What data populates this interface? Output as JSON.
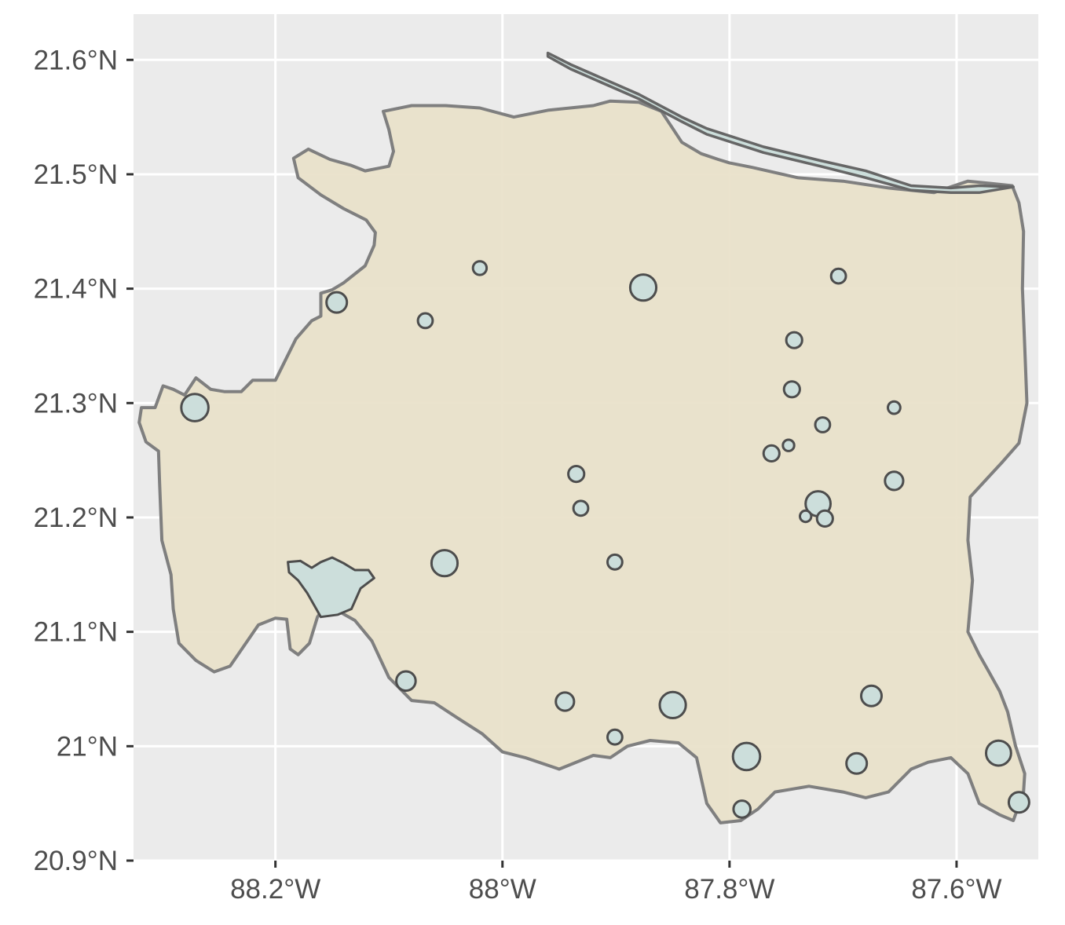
{
  "colors": {
    "panel_background": "#EBEBEB",
    "grid_line": "#FFFFFF",
    "land_fill": "#E8E1C9",
    "land_border": "#7F7F7F",
    "water_fill": "#CCDEDB",
    "water_border": "#4D4D4D",
    "axis_text": "#4D4D4D"
  },
  "map": {
    "x_axis": {
      "range": [
        -88.325,
        -87.528
      ],
      "ticks": [
        {
          "value": -88.2,
          "label": "88.2°W"
        },
        {
          "value": -88.0,
          "label": "88°W"
        },
        {
          "value": -87.8,
          "label": "87.8°W"
        },
        {
          "value": -87.6,
          "label": "87.6°W"
        }
      ]
    },
    "y_axis": {
      "range": [
        20.9,
        21.64
      ],
      "ticks": [
        {
          "value": 20.9,
          "label": "20.9°N"
        },
        {
          "value": 21.0,
          "label": "21°N"
        },
        {
          "value": 21.1,
          "label": "21.1°N"
        },
        {
          "value": 21.2,
          "label": "21.2°N"
        },
        {
          "value": 21.3,
          "label": "21.3°N"
        },
        {
          "value": 21.4,
          "label": "21.4°N"
        },
        {
          "value": 21.5,
          "label": "21.5°N"
        },
        {
          "value": 21.6,
          "label": "21.6°N"
        }
      ]
    },
    "grid": true,
    "land_outline_lonlat": [
      [
        -88.306,
        21.296
      ],
      [
        -88.299,
        21.315
      ],
      [
        -88.29,
        21.312
      ],
      [
        -88.28,
        21.307
      ],
      [
        -88.27,
        21.322
      ],
      [
        -88.257,
        21.312
      ],
      [
        -88.245,
        21.31
      ],
      [
        -88.23,
        21.31
      ],
      [
        -88.22,
        21.32
      ],
      [
        -88.2,
        21.32
      ],
      [
        -88.194,
        21.332
      ],
      [
        -88.182,
        21.356
      ],
      [
        -88.168,
        21.372
      ],
      [
        -88.16,
        21.376
      ],
      [
        -88.16,
        21.396
      ],
      [
        -88.15,
        21.399
      ],
      [
        -88.14,
        21.405
      ],
      [
        -88.121,
        21.42
      ],
      [
        -88.113,
        21.438
      ],
      [
        -88.112,
        21.449
      ],
      [
        -88.12,
        21.46
      ],
      [
        -88.14,
        21.47
      ],
      [
        -88.16,
        21.482
      ],
      [
        -88.18,
        21.497
      ],
      [
        -88.184,
        21.514
      ],
      [
        -88.171,
        21.522
      ],
      [
        -88.152,
        21.513
      ],
      [
        -88.134,
        21.508
      ],
      [
        -88.121,
        21.503
      ],
      [
        -88.1,
        21.507
      ],
      [
        -88.096,
        21.52
      ],
      [
        -88.1,
        21.539
      ],
      [
        -88.105,
        21.555
      ],
      [
        -88.08,
        21.56
      ],
      [
        -88.05,
        21.56
      ],
      [
        -88.02,
        21.558
      ],
      [
        -87.99,
        21.55
      ],
      [
        -87.96,
        21.556
      ],
      [
        -87.92,
        21.56
      ],
      [
        -87.905,
        21.564
      ],
      [
        -87.88,
        21.563
      ],
      [
        -87.86,
        21.555
      ],
      [
        -87.85,
        21.54
      ],
      [
        -87.842,
        21.528
      ],
      [
        -87.825,
        21.518
      ],
      [
        -87.81,
        21.513
      ],
      [
        -87.8,
        21.51
      ],
      [
        -87.78,
        21.506
      ],
      [
        -87.74,
        21.497
      ],
      [
        -87.7,
        21.494
      ],
      [
        -87.66,
        21.488
      ],
      [
        -87.62,
        21.484
      ],
      [
        -87.59,
        21.494
      ],
      [
        -87.57,
        21.492
      ],
      [
        -87.551,
        21.49
      ],
      [
        -87.545,
        21.475
      ],
      [
        -87.541,
        21.45
      ],
      [
        -87.542,
        21.4
      ],
      [
        -87.54,
        21.35
      ],
      [
        -87.538,
        21.3
      ],
      [
        -87.545,
        21.265
      ],
      [
        -87.56,
        21.248
      ],
      [
        -87.575,
        21.232
      ],
      [
        -87.588,
        21.218
      ],
      [
        -87.59,
        21.18
      ],
      [
        -87.586,
        21.145
      ],
      [
        -87.59,
        21.1
      ],
      [
        -87.58,
        21.08
      ],
      [
        -87.572,
        21.066
      ],
      [
        -87.562,
        21.048
      ],
      [
        -87.555,
        21.03
      ],
      [
        -87.548,
        21.0
      ],
      [
        -87.54,
        20.976
      ],
      [
        -87.541,
        20.96
      ],
      [
        -87.55,
        20.935
      ],
      [
        -87.562,
        20.94
      ],
      [
        -87.58,
        20.95
      ],
      [
        -87.59,
        20.976
      ],
      [
        -87.605,
        20.99
      ],
      [
        -87.625,
        20.986
      ],
      [
        -87.64,
        20.98
      ],
      [
        -87.66,
        20.96
      ],
      [
        -87.68,
        20.955
      ],
      [
        -87.7,
        20.96
      ],
      [
        -87.73,
        20.965
      ],
      [
        -87.76,
        20.96
      ],
      [
        -87.775,
        20.945
      ],
      [
        -87.79,
        20.935
      ],
      [
        -87.808,
        20.933
      ],
      [
        -87.82,
        20.95
      ],
      [
        -87.829,
        20.99
      ],
      [
        -87.845,
        21.003
      ],
      [
        -87.87,
        21.005
      ],
      [
        -87.89,
        21.0
      ],
      [
        -87.905,
        20.99
      ],
      [
        -87.92,
        20.992
      ],
      [
        -87.95,
        20.98
      ],
      [
        -87.98,
        20.99
      ],
      [
        -88.0,
        20.995
      ],
      [
        -88.018,
        21.011
      ],
      [
        -88.04,
        21.025
      ],
      [
        -88.06,
        21.038
      ],
      [
        -88.08,
        21.04
      ],
      [
        -88.1,
        21.06
      ],
      [
        -88.115,
        21.092
      ],
      [
        -88.13,
        21.11
      ],
      [
        -88.155,
        21.124
      ],
      [
        -88.163,
        21.113
      ],
      [
        -88.17,
        21.09
      ],
      [
        -88.18,
        21.08
      ],
      [
        -88.187,
        21.085
      ],
      [
        -88.19,
        21.111
      ],
      [
        -88.2,
        21.112
      ],
      [
        -88.215,
        21.106
      ],
      [
        -88.24,
        21.07
      ],
      [
        -88.254,
        21.065
      ],
      [
        -88.27,
        21.075
      ],
      [
        -88.285,
        21.09
      ],
      [
        -88.29,
        21.12
      ],
      [
        -88.292,
        21.15
      ],
      [
        -88.3,
        21.18
      ],
      [
        -88.302,
        21.23
      ],
      [
        -88.303,
        21.258
      ],
      [
        -88.314,
        21.266
      ],
      [
        -88.32,
        21.283
      ],
      [
        -88.318,
        21.296
      ]
    ],
    "coastal_bar_outline_lonlat": [
      [
        -87.96,
        21.606
      ],
      [
        -87.94,
        21.596
      ],
      [
        -87.88,
        21.57
      ],
      [
        -87.842,
        21.55
      ],
      [
        -87.82,
        21.54
      ],
      [
        -87.77,
        21.524
      ],
      [
        -87.72,
        21.512
      ],
      [
        -87.68,
        21.503
      ],
      [
        -87.64,
        21.49
      ],
      [
        -87.605,
        21.488
      ],
      [
        -87.58,
        21.49
      ],
      [
        -87.55,
        21.489
      ],
      [
        -87.58,
        21.484
      ],
      [
        -87.605,
        21.484
      ],
      [
        -87.64,
        21.486
      ],
      [
        -87.68,
        21.497
      ],
      [
        -87.72,
        21.507
      ],
      [
        -87.77,
        21.519
      ],
      [
        -87.82,
        21.535
      ],
      [
        -87.842,
        21.546
      ],
      [
        -87.88,
        21.566
      ],
      [
        -87.94,
        21.592
      ],
      [
        -87.96,
        21.603
      ]
    ],
    "large_lagoon_outline_lonlat": [
      [
        -88.189,
        21.161
      ],
      [
        -88.178,
        21.162
      ],
      [
        -88.168,
        21.156
      ],
      [
        -88.16,
        21.161
      ],
      [
        -88.15,
        21.165
      ],
      [
        -88.14,
        21.16
      ],
      [
        -88.13,
        21.154
      ],
      [
        -88.118,
        21.154
      ],
      [
        -88.113,
        21.147
      ],
      [
        -88.125,
        21.138
      ],
      [
        -88.133,
        21.12
      ],
      [
        -88.145,
        21.115
      ],
      [
        -88.16,
        21.113
      ],
      [
        -88.172,
        21.134
      ],
      [
        -88.18,
        21.145
      ],
      [
        -88.188,
        21.152
      ]
    ],
    "lakes": [
      {
        "lon": -88.271,
        "lat": 21.296,
        "r": 0.012
      },
      {
        "lon": -88.146,
        "lat": 21.388,
        "r": 0.009
      },
      {
        "lon": -88.068,
        "lat": 21.372,
        "r": 0.0065
      },
      {
        "lon": -88.02,
        "lat": 21.418,
        "r": 0.006
      },
      {
        "lon": -87.876,
        "lat": 21.401,
        "r": 0.0115
      },
      {
        "lon": -87.704,
        "lat": 21.411,
        "r": 0.0065
      },
      {
        "lon": -87.743,
        "lat": 21.355,
        "r": 0.007
      },
      {
        "lon": -87.745,
        "lat": 21.312,
        "r": 0.007
      },
      {
        "lon": -87.655,
        "lat": 21.296,
        "r": 0.0055
      },
      {
        "lon": -87.718,
        "lat": 21.281,
        "r": 0.0065
      },
      {
        "lon": -87.763,
        "lat": 21.256,
        "r": 0.007
      },
      {
        "lon": -87.748,
        "lat": 21.263,
        "r": 0.005
      },
      {
        "lon": -87.655,
        "lat": 21.232,
        "r": 0.008
      },
      {
        "lon": -87.722,
        "lat": 21.212,
        "r": 0.011
      },
      {
        "lon": -87.716,
        "lat": 21.199,
        "r": 0.007
      },
      {
        "lon": -87.733,
        "lat": 21.201,
        "r": 0.005
      },
      {
        "lon": -87.935,
        "lat": 21.238,
        "r": 0.007
      },
      {
        "lon": -87.931,
        "lat": 21.208,
        "r": 0.0065
      },
      {
        "lon": -88.051,
        "lat": 21.16,
        "r": 0.0115
      },
      {
        "lon": -87.901,
        "lat": 21.161,
        "r": 0.0065
      },
      {
        "lon": -88.085,
        "lat": 21.057,
        "r": 0.0085
      },
      {
        "lon": -87.945,
        "lat": 21.039,
        "r": 0.008
      },
      {
        "lon": -87.85,
        "lat": 21.036,
        "r": 0.0115
      },
      {
        "lon": -87.675,
        "lat": 21.044,
        "r": 0.009
      },
      {
        "lon": -87.901,
        "lat": 21.008,
        "r": 0.0065
      },
      {
        "lon": -87.785,
        "lat": 20.991,
        "r": 0.012
      },
      {
        "lon": -87.688,
        "lat": 20.985,
        "r": 0.009
      },
      {
        "lon": -87.563,
        "lat": 20.994,
        "r": 0.011
      },
      {
        "lon": -87.789,
        "lat": 20.945,
        "r": 0.0075
      },
      {
        "lon": -87.545,
        "lat": 20.951,
        "r": 0.009
      }
    ]
  }
}
